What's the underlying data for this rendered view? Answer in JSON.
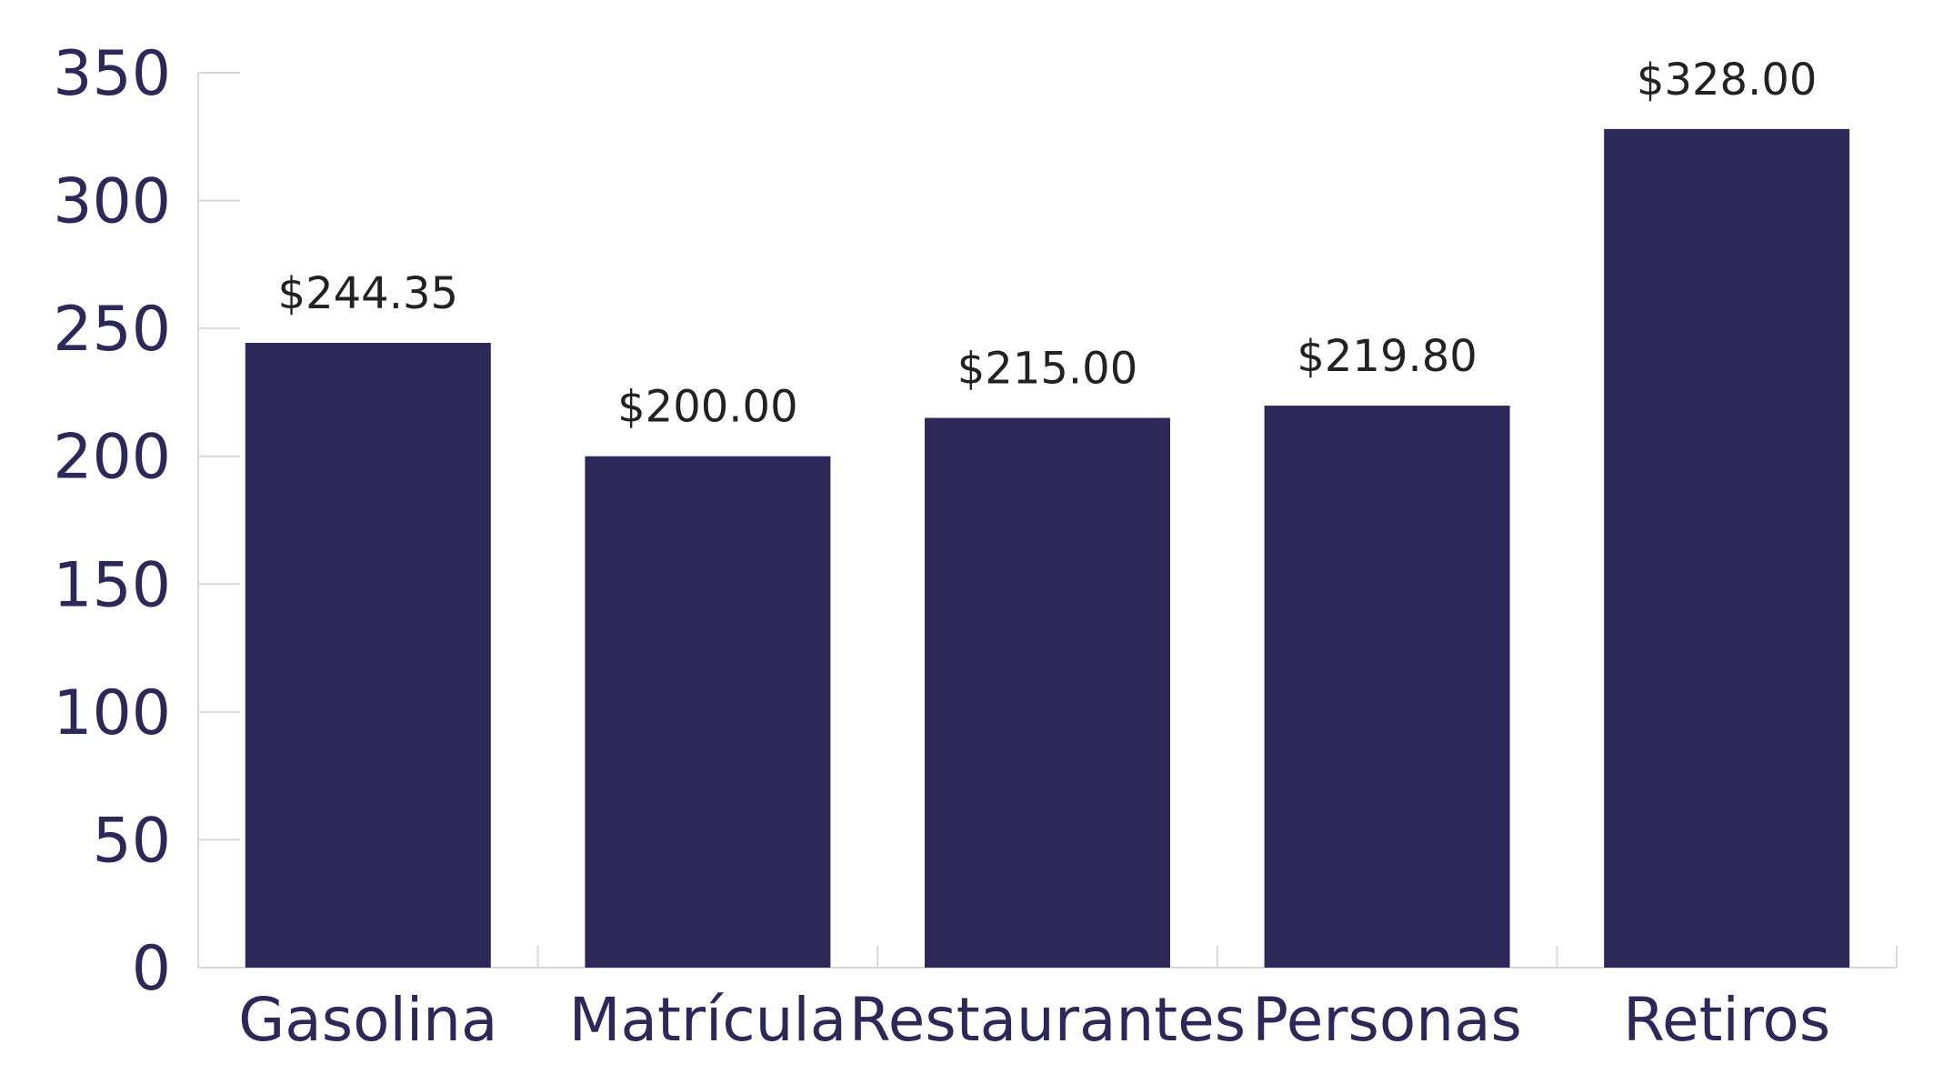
{
  "chart_data": {
    "type": "bar",
    "categories": [
      "Gasolina",
      "Matrícula",
      "Restaurantes",
      "Personas",
      "Retiros"
    ],
    "values": [
      244.35,
      200.0,
      215.0,
      219.8,
      328.0
    ],
    "data_labels": [
      "$244.35",
      "$200.00",
      "$215.00",
      "$219.80",
      "$328.00"
    ],
    "ylim": [
      0,
      350
    ],
    "yticks": [
      0,
      50,
      100,
      150,
      200,
      250,
      300,
      350
    ],
    "ytick_labels": [
      "0",
      "50",
      "100",
      "150",
      "200",
      "250",
      "300",
      "350"
    ],
    "title": "",
    "xlabel": "",
    "ylabel": "",
    "grid": false,
    "legend": "none",
    "colors": {
      "bar": "#2c2858",
      "axis_text": "#2c2858",
      "data_label": "#222222",
      "axis_line": "#d8d8d8",
      "background": "#ffffff"
    }
  }
}
